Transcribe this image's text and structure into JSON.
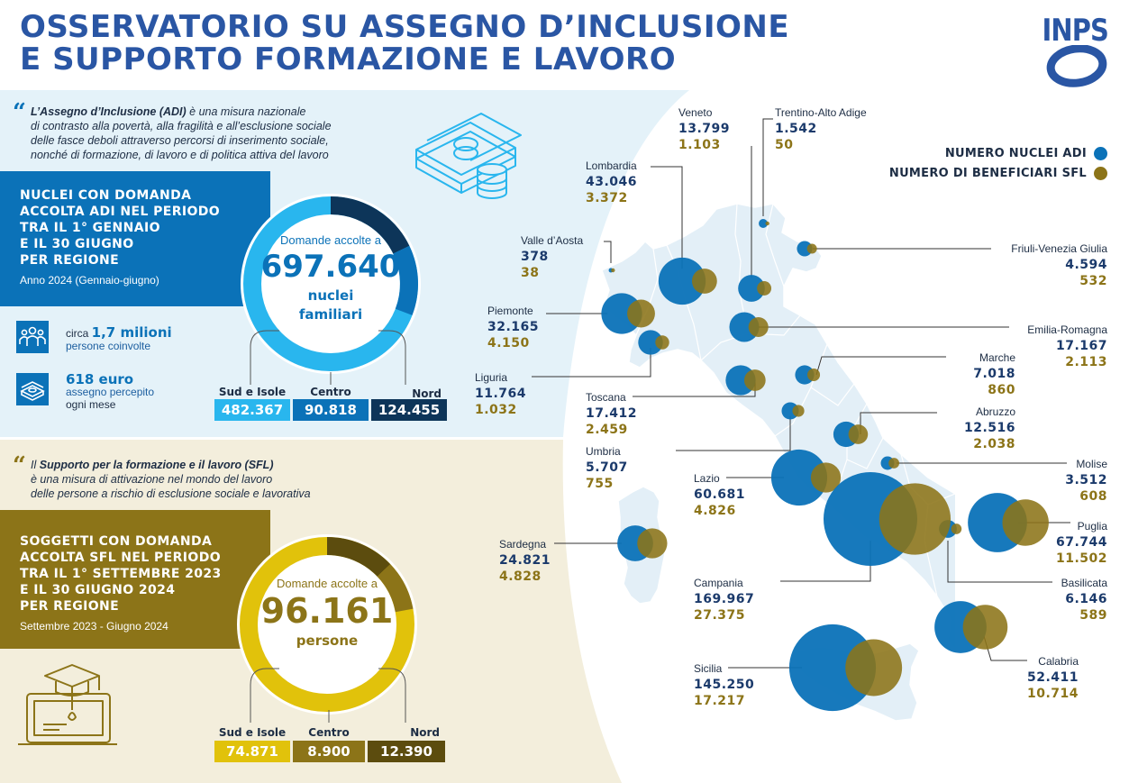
{
  "header": {
    "title_line1": "OSSERVATORIO SU ASSEGNO D’INCLUSIONE",
    "title_line2": "E SUPPORTO FORMAZIONE E LAVORO",
    "logo_text": "INPS"
  },
  "colors": {
    "title": "#2a56a4",
    "adi_blue": "#0b72b8",
    "adi_light": "#29b6ee",
    "adi_dark": "#0d3559",
    "sfl_gold": "#8c7418",
    "sfl_yellow": "#e1c20b",
    "sfl_dark": "#5c4c0e",
    "map_fill": "#e3eff7"
  },
  "adi": {
    "intro_quote": "“",
    "intro_term": "L’Assegno d’Inclusione (ADI)",
    "intro_text1": " è una misura nazionale",
    "intro_line2": "di contrasto alla povertà, alla fragilità e all’esclusione sociale",
    "intro_line3": "delle fasce deboli attraverso percorsi di inserimento sociale,",
    "intro_line4": "nonché di formazione, di lavoro e di politica attiva del lavoro",
    "band_line1": "NUCLEI CON DOMANDA",
    "band_line2": "ACCOLTA ADI NEL PERIODO",
    "band_line3": "TRA IL 1° GENNAIO",
    "band_line4": "E IL 30 GIUGNO",
    "band_line5": "PER REGIONE",
    "band_sub": "Anno 2024 (Gennaio-giugno)",
    "circle_label": "Domande accolte a",
    "total": "697.640",
    "unit_line1": "nuclei",
    "unit_line2": "familiari",
    "stat1_pre": "circa ",
    "stat1_value": "1,7 milioni",
    "stat1_text": "persone coinvolte",
    "stat2_value": "618 euro",
    "stat2_text1": "assegno percepito",
    "stat2_text2": "ogni mese",
    "areas": [
      {
        "label": "Sud e Isole",
        "value": "482.367",
        "share": 0.6914
      },
      {
        "label": "Centro",
        "value": "90.818",
        "share": 0.1302
      },
      {
        "label": "Nord",
        "value": "124.455",
        "share": 0.1784
      }
    ]
  },
  "sfl": {
    "intro_quote": "“",
    "intro_pre": "Il ",
    "intro_term": "Supporto per la formazione e il lavoro (SFL)",
    "intro_line2": "è una misura di attivazione nel mondo del lavoro",
    "intro_line3": "delle persone a rischio di esclusione sociale e lavorativa",
    "band_line1": "SOGGETTI CON DOMANDA",
    "band_line2": "ACCOLTA SFL NEL PERIODO",
    "band_line3": "TRA IL 1° SETTEMBRE 2023",
    "band_line4": "E IL 30 GIUGNO 2024",
    "band_line5": "PER REGIONE",
    "band_sub": "Settembre 2023 - Giugno 2024",
    "circle_label": "Domande accolte a",
    "total": "96.161",
    "unit": "persone",
    "areas": [
      {
        "label": "Sud e Isole",
        "value": "74.871",
        "share": 0.7786
      },
      {
        "label": "Centro",
        "value": "8.900",
        "share": 0.0926
      },
      {
        "label": "Nord",
        "value": "12.390",
        "share": 0.1288
      }
    ]
  },
  "legend": {
    "adi": "NUMERO NUCLEI ADI",
    "sfl": "NUMERO DI BENEFICIARI SFL"
  },
  "regions": [
    {
      "key": "veneto",
      "name": "Veneto",
      "adi": "13.799",
      "sfl": "1.103",
      "adi_n": 13799,
      "sfl_n": 1103
    },
    {
      "key": "trentino",
      "name": "Trentino-Alto Adige",
      "adi": "1.542",
      "sfl": "50",
      "adi_n": 1542,
      "sfl_n": 50
    },
    {
      "key": "lombardia",
      "name": "Lombardia",
      "adi": "43.046",
      "sfl": "3.372",
      "adi_n": 43046,
      "sfl_n": 3372
    },
    {
      "key": "valle",
      "name": "Valle d’Aosta",
      "adi": "378",
      "sfl": "38",
      "adi_n": 378,
      "sfl_n": 38
    },
    {
      "key": "friuli",
      "name": "Friuli-Venezia Giulia",
      "adi": "4.594",
      "sfl": "532",
      "adi_n": 4594,
      "sfl_n": 532
    },
    {
      "key": "piemonte",
      "name": "Piemonte",
      "adi": "32.165",
      "sfl": "4.150",
      "adi_n": 32165,
      "sfl_n": 4150
    },
    {
      "key": "emilia",
      "name": "Emilia-Romagna",
      "adi": "17.167",
      "sfl": "2.113",
      "adi_n": 17167,
      "sfl_n": 2113
    },
    {
      "key": "liguria",
      "name": "Liguria",
      "adi": "11.764",
      "sfl": "1.032",
      "adi_n": 11764,
      "sfl_n": 1032
    },
    {
      "key": "marche",
      "name": "Marche",
      "adi": "7.018",
      "sfl": "860",
      "adi_n": 7018,
      "sfl_n": 860
    },
    {
      "key": "toscana",
      "name": "Toscana",
      "adi": "17.412",
      "sfl": "2.459",
      "adi_n": 17412,
      "sfl_n": 2459
    },
    {
      "key": "abruzzo",
      "name": "Abruzzo",
      "adi": "12.516",
      "sfl": "2.038",
      "adi_n": 12516,
      "sfl_n": 2038
    },
    {
      "key": "umbria",
      "name": "Umbria",
      "adi": "5.707",
      "sfl": "755",
      "adi_n": 5707,
      "sfl_n": 755
    },
    {
      "key": "molise",
      "name": "Molise",
      "adi": "3.512",
      "sfl": "608",
      "adi_n": 3512,
      "sfl_n": 608
    },
    {
      "key": "lazio",
      "name": "Lazio",
      "adi": "60.681",
      "sfl": "4.826",
      "adi_n": 60681,
      "sfl_n": 4826
    },
    {
      "key": "puglia",
      "name": "Puglia",
      "adi": "67.744",
      "sfl": "11.502",
      "adi_n": 67744,
      "sfl_n": 11502
    },
    {
      "key": "sardegna",
      "name": "Sardegna",
      "adi": "24.821",
      "sfl": "4.828",
      "adi_n": 24821,
      "sfl_n": 4828
    },
    {
      "key": "basilicata",
      "name": "Basilicata",
      "adi": "6.146",
      "sfl": "589",
      "adi_n": 6146,
      "sfl_n": 589
    },
    {
      "key": "campania",
      "name": "Campania",
      "adi": "169.967",
      "sfl": "27.375",
      "adi_n": 169967,
      "sfl_n": 27375
    },
    {
      "key": "calabria",
      "name": "Calabria",
      "adi": "52.411",
      "sfl": "10.714",
      "adi_n": 52411,
      "sfl_n": 10714
    },
    {
      "key": "sicilia",
      "name": "Sicilia",
      "adi": "145.250",
      "sfl": "17.217",
      "adi_n": 145250,
      "sfl_n": 17217
    }
  ]
}
